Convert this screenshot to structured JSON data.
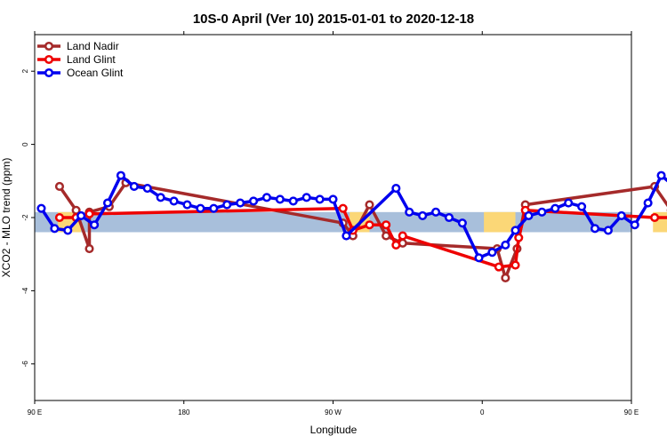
{
  "chart_data": {
    "type": "line",
    "title": "10S-0 April (Ver 10)   2015-01-01 to 2020-12-18",
    "xlabel": "Longitude",
    "ylabel": "XCO2 - MLO trend (ppm)",
    "xlim": [
      90,
      450
    ],
    "ylim": [
      -7,
      3
    ],
    "x_ticks": [
      {
        "value": 90,
        "label": "90 E"
      },
      {
        "value": 180,
        "label": "180"
      },
      {
        "value": 270,
        "label": "90 W"
      },
      {
        "value": 360,
        "label": "0"
      },
      {
        "value": 450,
        "label": "90 E"
      }
    ],
    "x_ticks_top": [
      90,
      180,
      270,
      360,
      450
    ],
    "y_ticks": [
      {
        "value": 2,
        "label": "2"
      },
      {
        "value": 0,
        "label": "0"
      },
      {
        "value": -2,
        "label": "-2"
      },
      {
        "value": -4,
        "label": "-4"
      },
      {
        "value": -6,
        "label": "-6"
      }
    ],
    "band": {
      "from": -2.4,
      "to": -1.85,
      "color": "#a8bfdb",
      "land_color": "#fbd777"
    },
    "land_spans": [
      [
        104,
        118
      ],
      [
        280,
        292
      ],
      [
        361,
        380
      ],
      [
        463,
        472
      ]
    ],
    "legend_position": "top-left",
    "series": [
      {
        "name": "Land Nadir",
        "color": "#a52a2a",
        "points": [
          [
            105,
            -1.15
          ],
          [
            115,
            -1.8
          ],
          [
            123,
            -2.85
          ],
          [
            123,
            -1.85
          ],
          [
            135,
            -1.7
          ],
          [
            145,
            -1.05
          ],
          [
            276,
            -2.15
          ],
          [
            282,
            -2.5
          ],
          [
            292,
            -1.65
          ],
          [
            302,
            -2.5
          ],
          [
            312,
            -2.7
          ],
          [
            369,
            -2.85
          ],
          [
            374,
            -3.65
          ],
          [
            381,
            -2.85
          ],
          [
            386,
            -1.65
          ],
          [
            464,
            -1.15
          ],
          [
            474,
            -1.8
          ],
          [
            482,
            -2.85
          ],
          [
            482,
            -1.85
          ],
          [
            494,
            -1.7
          ],
          [
            504,
            -1.05
          ]
        ]
      },
      {
        "name": "Land Glint",
        "color": "#ee0000",
        "points": [
          [
            105,
            -2.0
          ],
          [
            115,
            -2.0
          ],
          [
            123,
            -1.9
          ],
          [
            276,
            -1.75
          ],
          [
            282,
            -2.35
          ],
          [
            292,
            -2.2
          ],
          [
            302,
            -2.2
          ],
          [
            308,
            -2.75
          ],
          [
            312,
            -2.5
          ],
          [
            370,
            -3.35
          ],
          [
            380,
            -3.3
          ],
          [
            382,
            -2.55
          ],
          [
            386,
            -1.8
          ],
          [
            464,
            -2.0
          ],
          [
            474,
            -2.0
          ],
          [
            482,
            -1.9
          ]
        ]
      },
      {
        "name": "Ocean Glint",
        "color": "#0000ee",
        "points": [
          [
            94,
            -1.75
          ],
          [
            102,
            -2.3
          ],
          [
            110,
            -2.35
          ],
          [
            118,
            -1.95
          ],
          [
            126,
            -2.2
          ],
          [
            134,
            -1.6
          ],
          [
            142,
            -0.85
          ],
          [
            150,
            -1.15
          ],
          [
            158,
            -1.2
          ],
          [
            166,
            -1.45
          ],
          [
            174,
            -1.55
          ],
          [
            182,
            -1.65
          ],
          [
            190,
            -1.75
          ],
          [
            198,
            -1.75
          ],
          [
            206,
            -1.65
          ],
          [
            214,
            -1.6
          ],
          [
            222,
            -1.55
          ],
          [
            230,
            -1.45
          ],
          [
            238,
            -1.5
          ],
          [
            246,
            -1.55
          ],
          [
            254,
            -1.45
          ],
          [
            262,
            -1.5
          ],
          [
            270,
            -1.5
          ],
          [
            278,
            -2.5
          ],
          [
            308,
            -1.2
          ],
          [
            316,
            -1.85
          ],
          [
            324,
            -1.95
          ],
          [
            332,
            -1.85
          ],
          [
            340,
            -2.0
          ],
          [
            348,
            -2.15
          ],
          [
            358,
            -3.1
          ],
          [
            366,
            -2.95
          ],
          [
            374,
            -2.75
          ],
          [
            380,
            -2.35
          ],
          [
            388,
            -1.95
          ],
          [
            396,
            -1.85
          ],
          [
            404,
            -1.75
          ],
          [
            412,
            -1.6
          ],
          [
            420,
            -1.7
          ],
          [
            428,
            -2.3
          ],
          [
            436,
            -2.35
          ],
          [
            444,
            -1.95
          ],
          [
            452,
            -2.2
          ],
          [
            460,
            -1.6
          ],
          [
            468,
            -0.85
          ],
          [
            476,
            -1.15
          ],
          [
            484,
            -1.2
          ]
        ]
      }
    ]
  }
}
